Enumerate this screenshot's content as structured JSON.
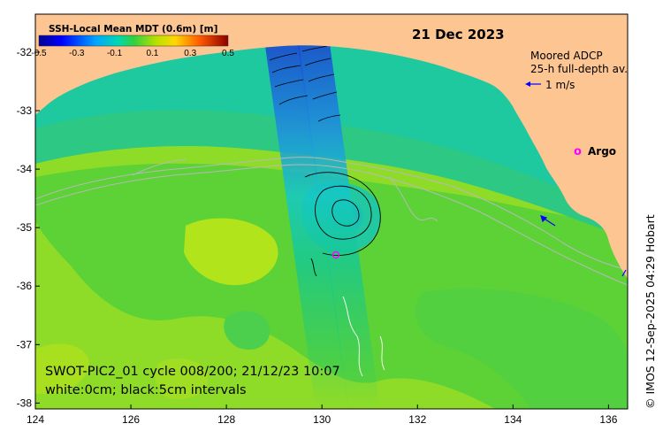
{
  "date": "21 Dec 2023",
  "colorbar": {
    "title": "SSH-Local Mean MDT (0.6m) [m]",
    "ticks": [
      "-0.5",
      "-0.3",
      "-0.1",
      "0.1",
      "0.3",
      "0.5"
    ],
    "range": [
      -0.5,
      0.5
    ]
  },
  "legend": {
    "adcp_line1": "Moored ADCP",
    "adcp_line2": "25-h full-depth av.",
    "adcp_scale": "1 m/s",
    "argo_marker": "o",
    "argo_label": "Argo"
  },
  "caption": {
    "line1": "SWOT-PIC2_01 cycle 008/200; 21/12/23 10:07",
    "line2": "white:0cm; black:5cm intervals"
  },
  "credit": "© IMOS 12-Sep-2025 04:29 Hobart",
  "axes": {
    "x_ticks": [
      "124",
      "126",
      "128",
      "130",
      "132",
      "134",
      "136"
    ],
    "y_ticks": [
      "-32",
      "-33",
      "-34",
      "-35",
      "-36",
      "-37",
      "-38"
    ],
    "xlim": [
      124,
      136.4
    ],
    "ylim": [
      -38.1,
      -31.35
    ]
  },
  "colors": {
    "land": "#fcc592",
    "ocean_deep": "#1ec99a",
    "ocean_mid": "#3ccc66",
    "ocean_high": "#9ade20",
    "swath_low": "#2a7fd6",
    "adcp_arrow": "#0000ff",
    "argo": "#ff00ff"
  }
}
